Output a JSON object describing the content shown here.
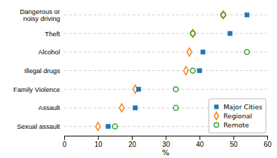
{
  "chart_data": {
    "type": "dot",
    "categories": [
      "Dangerous or\nnoisy driving",
      "Theft",
      "Alcohol",
      "Illegal drugs",
      "Family Violence",
      "Assault",
      "Sexual assault"
    ],
    "series": [
      {
        "name": "Major Cities",
        "marker": "square",
        "values": [
          54,
          49,
          41,
          40,
          22,
          21,
          13
        ]
      },
      {
        "name": "Regional",
        "marker": "diamond",
        "values": [
          47,
          38,
          37,
          36,
          21,
          17,
          10
        ]
      },
      {
        "name": "Remote",
        "marker": "circle",
        "values": [
          47,
          38,
          54,
          38,
          33,
          33,
          15
        ]
      }
    ],
    "xlabel": "%",
    "xlim": [
      0,
      60
    ],
    "xticks": [
      0,
      10,
      20,
      30,
      40,
      50,
      60
    ],
    "grid": true,
    "legend": "lower right"
  }
}
